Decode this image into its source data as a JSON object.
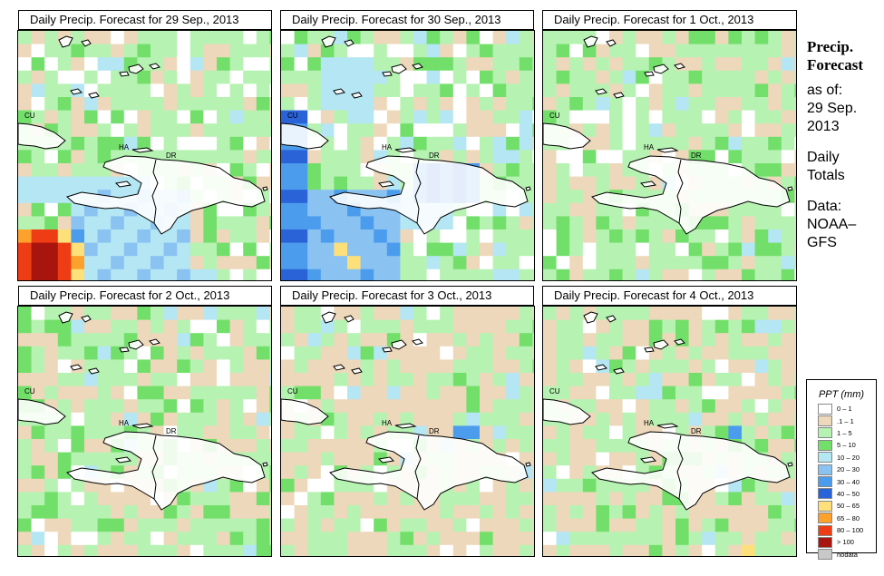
{
  "panels": [
    {
      "title": "Daily Precip. Forecast for  29 Sep., 2013",
      "variant": 0
    },
    {
      "title": "Daily Precip. Forecast for  30 Sep., 2013",
      "variant": 1
    },
    {
      "title": "Daily Precip. Forecast for  1 Oct., 2013",
      "variant": 2
    },
    {
      "title": "Daily Precip. Forecast for  2 Oct., 2013",
      "variant": 3
    },
    {
      "title": "Daily Precip. Forecast for  3 Oct., 2013",
      "variant": 4
    },
    {
      "title": "Daily Precip. Forecast for  4 Oct., 2013",
      "variant": 5
    }
  ],
  "map_labels": {
    "cuba": "CU",
    "haiti": "HA",
    "dominican_republic": "DR"
  },
  "sidebar": {
    "title_line1": "Precip.",
    "title_line2": "Forecast",
    "asof": "as of:",
    "date_line1": "29 Sep.",
    "date_line2": "2013",
    "totals_line1": "Daily",
    "totals_line2": "Totals",
    "data_line1": "Data:",
    "data_line2": "NOAA–",
    "data_line3": "GFS"
  },
  "legend": {
    "title": "PPT (mm)",
    "items": [
      {
        "label": "0 – 1",
        "color": "#ffffff"
      },
      {
        "label": ".1 – 1",
        "color": "#eed8bb"
      },
      {
        "label": "1 – 5",
        "color": "#b6f2b1"
      },
      {
        "label": "5 – 10",
        "color": "#73df6b"
      },
      {
        "label": "10 – 20",
        "color": "#b4e6f4"
      },
      {
        "label": "20 – 30",
        "color": "#8ac2f2"
      },
      {
        "label": "30 – 40",
        "color": "#4c9cee"
      },
      {
        "label": "40 – 50",
        "color": "#2a62d8"
      },
      {
        "label": "50 – 65",
        "color": "#fde07a"
      },
      {
        "label": "65 – 80",
        "color": "#fca12c"
      },
      {
        "label": "80 – 100",
        "color": "#ee3d14"
      },
      {
        "label": "> 100",
        "color": "#a8150f"
      },
      {
        "label": "nodata",
        "color": "#c8c8c8"
      }
    ]
  }
}
